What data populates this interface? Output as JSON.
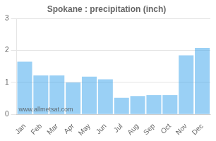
{
  "chart_data": {
    "type": "bar",
    "title": "Spokane : precipitation (inch)",
    "categories": [
      "Jan",
      "Feb",
      "Mar",
      "Apr",
      "May",
      "Jun",
      "Jul",
      "Aug",
      "Sep",
      "Oct",
      "Nov",
      "Dec"
    ],
    "values": [
      1.65,
      1.22,
      1.22,
      1.0,
      1.18,
      1.1,
      0.52,
      0.57,
      0.6,
      0.6,
      1.85,
      2.08
    ],
    "ylim": [
      0,
      3
    ],
    "yticks": [
      0,
      1,
      2,
      3
    ],
    "grid": true,
    "annotations": [
      "www.allmetsat.com"
    ]
  }
}
